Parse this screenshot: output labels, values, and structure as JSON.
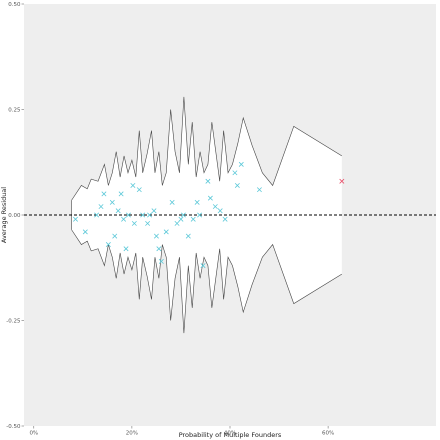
{
  "chart_data": {
    "type": "scatter",
    "title": "",
    "xlabel": "Probability of Multiple Founders",
    "ylabel": "Average Residual",
    "xlim": [
      -0.02,
      0.82
    ],
    "ylim": [
      -0.5,
      0.5
    ],
    "x_ticks": [
      0,
      0.2,
      0.4,
      0.6
    ],
    "x_tick_labels": [
      "0%",
      "20%",
      "40%",
      "60%"
    ],
    "y_ticks": [
      -0.5,
      -0.25,
      0,
      0.25,
      0.5
    ],
    "y_tick_labels": [
      "-0.50",
      "-0.25",
      "0.00",
      "0.25",
      "0.50"
    ],
    "grid": false,
    "background_color": "#eeeeee",
    "reference_line": {
      "y": 0,
      "style": "dashed"
    },
    "band": {
      "x": [
        0.077,
        0.097,
        0.109,
        0.117,
        0.131,
        0.144,
        0.152,
        0.16,
        0.168,
        0.176,
        0.184,
        0.192,
        0.2,
        0.208,
        0.215,
        0.222,
        0.231,
        0.24,
        0.247,
        0.255,
        0.262,
        0.27,
        0.279,
        0.288,
        0.297,
        0.306,
        0.315,
        0.323,
        0.331,
        0.339,
        0.347,
        0.355,
        0.363,
        0.371,
        0.379,
        0.387,
        0.396,
        0.405,
        0.416,
        0.427,
        0.445,
        0.466,
        0.487,
        0.53,
        0.628
      ],
      "upper": [
        0.035,
        0.07,
        0.062,
        0.085,
        0.08,
        0.12,
        0.07,
        0.1,
        0.15,
        0.09,
        0.14,
        0.1,
        0.13,
        0.09,
        0.2,
        0.1,
        0.145,
        0.2,
        0.1,
        0.15,
        0.07,
        0.1,
        0.25,
        0.15,
        0.1,
        0.28,
        0.12,
        0.22,
        0.09,
        0.15,
        0.1,
        0.12,
        0.22,
        0.15,
        0.08,
        0.2,
        0.1,
        0.12,
        0.17,
        0.23,
        0.165,
        0.1,
        0.07,
        0.21,
        0.14
      ],
      "lower": [
        -0.035,
        -0.07,
        -0.062,
        -0.085,
        -0.08,
        -0.12,
        -0.07,
        -0.1,
        -0.15,
        -0.09,
        -0.14,
        -0.1,
        -0.13,
        -0.09,
        -0.2,
        -0.1,
        -0.145,
        -0.2,
        -0.1,
        -0.15,
        -0.07,
        -0.1,
        -0.25,
        -0.15,
        -0.1,
        -0.28,
        -0.12,
        -0.22,
        -0.09,
        -0.15,
        -0.1,
        -0.12,
        -0.22,
        -0.15,
        -0.08,
        -0.2,
        -0.1,
        -0.12,
        -0.17,
        -0.23,
        -0.165,
        -0.1,
        -0.07,
        -0.21,
        -0.14
      ],
      "fill": "#ffffff",
      "stroke": "#444444"
    },
    "series": [
      {
        "color": "#5bc8d8",
        "marker": "x",
        "points": [
          [
            0.085,
            -0.01
          ],
          [
            0.105,
            -0.04
          ],
          [
            0.128,
            0.0
          ],
          [
            0.137,
            0.02
          ],
          [
            0.143,
            0.05
          ],
          [
            0.152,
            -0.07
          ],
          [
            0.16,
            0.03
          ],
          [
            0.165,
            -0.05
          ],
          [
            0.172,
            0.01
          ],
          [
            0.178,
            0.05
          ],
          [
            0.183,
            -0.01
          ],
          [
            0.188,
            -0.08
          ],
          [
            0.193,
            0.0
          ],
          [
            0.202,
            0.07
          ],
          [
            0.205,
            -0.02
          ],
          [
            0.215,
            0.06
          ],
          [
            0.222,
            0.0
          ],
          [
            0.232,
            -0.02
          ],
          [
            0.236,
            0.0
          ],
          [
            0.245,
            0.01
          ],
          [
            0.25,
            -0.05
          ],
          [
            0.255,
            -0.08
          ],
          [
            0.26,
            -0.11
          ],
          [
            0.27,
            -0.04
          ],
          [
            0.282,
            0.03
          ],
          [
            0.292,
            -0.02
          ],
          [
            0.3,
            -0.01
          ],
          [
            0.305,
            0.0
          ],
          [
            0.315,
            -0.05
          ],
          [
            0.325,
            -0.01
          ],
          [
            0.333,
            0.03
          ],
          [
            0.338,
            0.0
          ],
          [
            0.345,
            -0.12
          ],
          [
            0.355,
            0.08
          ],
          [
            0.36,
            0.04
          ],
          [
            0.37,
            0.02
          ],
          [
            0.38,
            0.01
          ],
          [
            0.39,
            -0.01
          ],
          [
            0.41,
            0.1
          ],
          [
            0.415,
            0.07
          ],
          [
            0.423,
            0.12
          ],
          [
            0.46,
            0.06
          ]
        ]
      },
      {
        "color": "#e8506a",
        "marker": "x",
        "points": [
          [
            0.628,
            0.08
          ]
        ]
      }
    ]
  }
}
